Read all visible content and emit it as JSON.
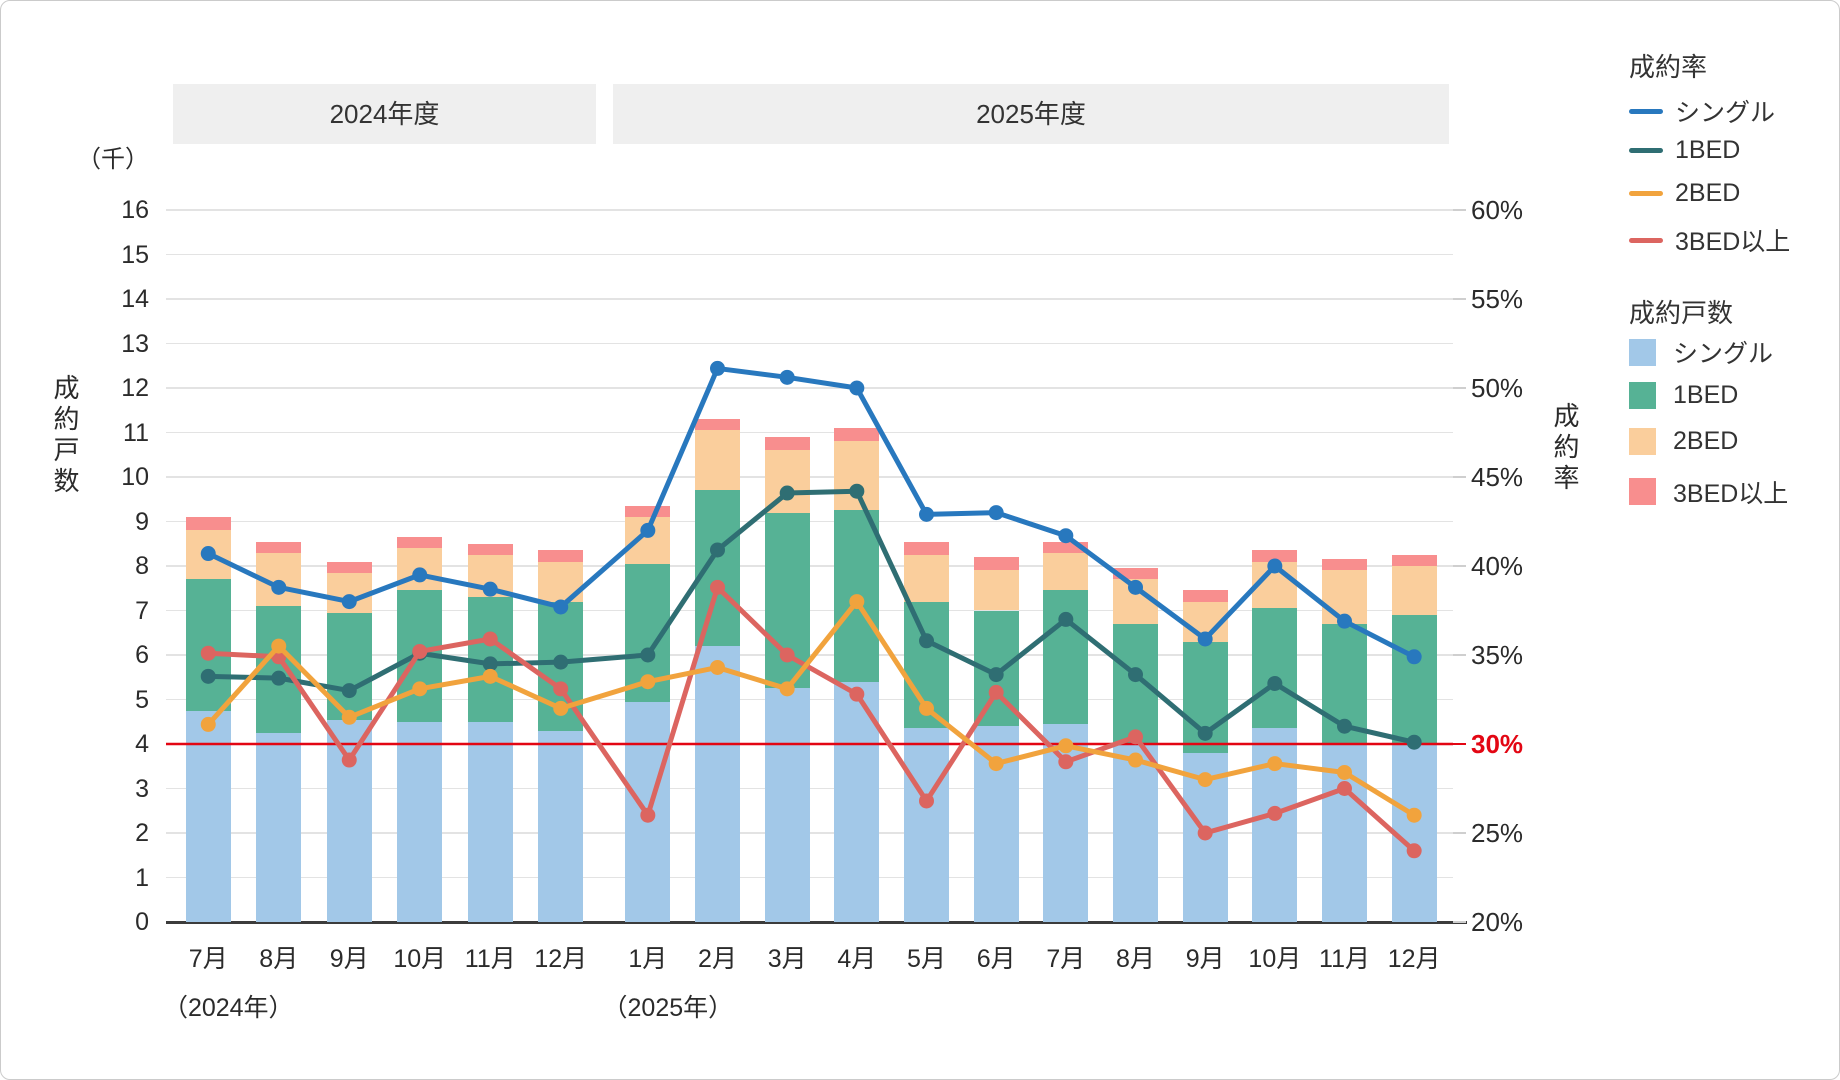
{
  "legend": {
    "rate_title": "成約率",
    "count_title": "成約戸数",
    "rate_items": [
      {
        "label": "シングル",
        "color": "#2878be"
      },
      {
        "label": "1BED",
        "color": "#2f6e73"
      },
      {
        "label": "2BED",
        "color": "#f1a33d"
      },
      {
        "label": "3BED以上",
        "color": "#dc6560"
      }
    ],
    "count_items": [
      {
        "label": "シングル",
        "color": "#a2c8e8"
      },
      {
        "label": "1BED",
        "color": "#56b295"
      },
      {
        "label": "2BED",
        "color": "#face9c"
      },
      {
        "label": "3BED以上",
        "color": "#f88e8e"
      }
    ]
  },
  "y_left": {
    "unit_label": "（千）",
    "title": "成約戸数",
    "ticks": [
      "0",
      "1",
      "2",
      "3",
      "4",
      "5",
      "6",
      "7",
      "8",
      "9",
      "10",
      "11",
      "12",
      "13",
      "14",
      "15",
      "16"
    ]
  },
  "y_right": {
    "title": "成約率",
    "ticks": [
      {
        "label": "60%",
        "value": 60
      },
      {
        "label": "55%",
        "value": 55
      },
      {
        "label": "50%",
        "value": 50
      },
      {
        "label": "45%",
        "value": 45
      },
      {
        "label": "40%",
        "value": 40
      },
      {
        "label": "35%",
        "value": 35
      },
      {
        "label": "30%",
        "value": 30,
        "highlight": true
      },
      {
        "label": "25%",
        "value": 25
      },
      {
        "label": "20%",
        "value": 20
      }
    ]
  },
  "x_axis": {
    "year_notes": [
      {
        "label": "（2024年）",
        "month_index": 0
      },
      {
        "label": "（2025年）",
        "month_index": 6
      }
    ]
  },
  "chart_data": {
    "type": "bar+line combo (stacked bars on left axis, rate lines on right axis)",
    "title": "",
    "left_axis": {
      "label": "成約戸数",
      "unit": "千",
      "range": [
        0,
        16
      ],
      "grid": true
    },
    "right_axis": {
      "label": "成約率",
      "unit": "%",
      "range": [
        20,
        60
      ],
      "tick_step": 5
    },
    "fiscal_bands": [
      {
        "label": "2024年度",
        "months": 6
      },
      {
        "label": "2025年度",
        "months": 12
      }
    ],
    "categories": [
      "7月",
      "8月",
      "9月",
      "10月",
      "11月",
      "12月",
      "1月",
      "2月",
      "3月",
      "4月",
      "5月",
      "6月",
      "7月",
      "8月",
      "9月",
      "10月",
      "11月",
      "12月"
    ],
    "bar_series": [
      {
        "name": "シングル",
        "color": "#a2c8e8",
        "values": [
          4.75,
          4.25,
          4.55,
          4.5,
          4.5,
          4.3,
          4.95,
          6.2,
          5.25,
          5.4,
          4.35,
          4.4,
          4.45,
          4.0,
          3.8,
          4.35,
          4.0,
          4.0
        ]
      },
      {
        "name": "1BED",
        "color": "#56b295",
        "values": [
          2.95,
          2.85,
          2.4,
          2.95,
          2.8,
          2.9,
          3.1,
          3.5,
          3.95,
          3.85,
          2.85,
          2.6,
          3.0,
          2.7,
          2.5,
          2.7,
          2.7,
          2.9
        ]
      },
      {
        "name": "2BED",
        "color": "#face9c",
        "values": [
          1.1,
          1.2,
          0.9,
          0.95,
          0.95,
          0.9,
          1.05,
          1.35,
          1.4,
          1.55,
          1.05,
          0.9,
          0.85,
          1.0,
          0.9,
          1.05,
          1.2,
          1.1
        ]
      },
      {
        "name": "3BED以上",
        "color": "#f88e8e",
        "values": [
          0.3,
          0.25,
          0.25,
          0.25,
          0.25,
          0.25,
          0.25,
          0.25,
          0.3,
          0.3,
          0.3,
          0.3,
          0.25,
          0.25,
          0.25,
          0.25,
          0.25,
          0.25
        ]
      }
    ],
    "line_series": [
      {
        "name": "1BED",
        "color": "#2f6e73",
        "values": [
          33.8,
          33.7,
          33.0,
          35.1,
          34.5,
          34.6,
          35.0,
          40.9,
          44.1,
          44.2,
          35.8,
          33.9,
          37.0,
          33.9,
          30.6,
          33.4,
          31.0,
          30.1
        ]
      },
      {
        "name": "3BED以上",
        "color": "#dc6560",
        "values": [
          35.1,
          34.9,
          29.1,
          35.2,
          35.9,
          33.1,
          26.0,
          38.8,
          35.0,
          32.8,
          26.8,
          32.9,
          29.0,
          30.4,
          25.0,
          26.1,
          27.5,
          24.0
        ]
      },
      {
        "name": "2BED",
        "color": "#f1a33d",
        "values": [
          31.1,
          35.5,
          31.5,
          33.1,
          33.8,
          32.0,
          33.5,
          34.3,
          33.1,
          38.0,
          32.0,
          28.9,
          29.9,
          29.1,
          28.0,
          28.9,
          28.4,
          26.0
        ]
      },
      {
        "name": "シングル",
        "color": "#2878be",
        "values": [
          40.7,
          38.8,
          38.0,
          39.5,
          38.7,
          37.7,
          42.0,
          51.1,
          50.6,
          50.0,
          42.9,
          43.0,
          41.7,
          38.8,
          35.9,
          40.0,
          36.9,
          34.9
        ]
      }
    ],
    "threshold": {
      "value": 30,
      "label": "30%",
      "color": "#e30613",
      "axis": "right"
    }
  }
}
